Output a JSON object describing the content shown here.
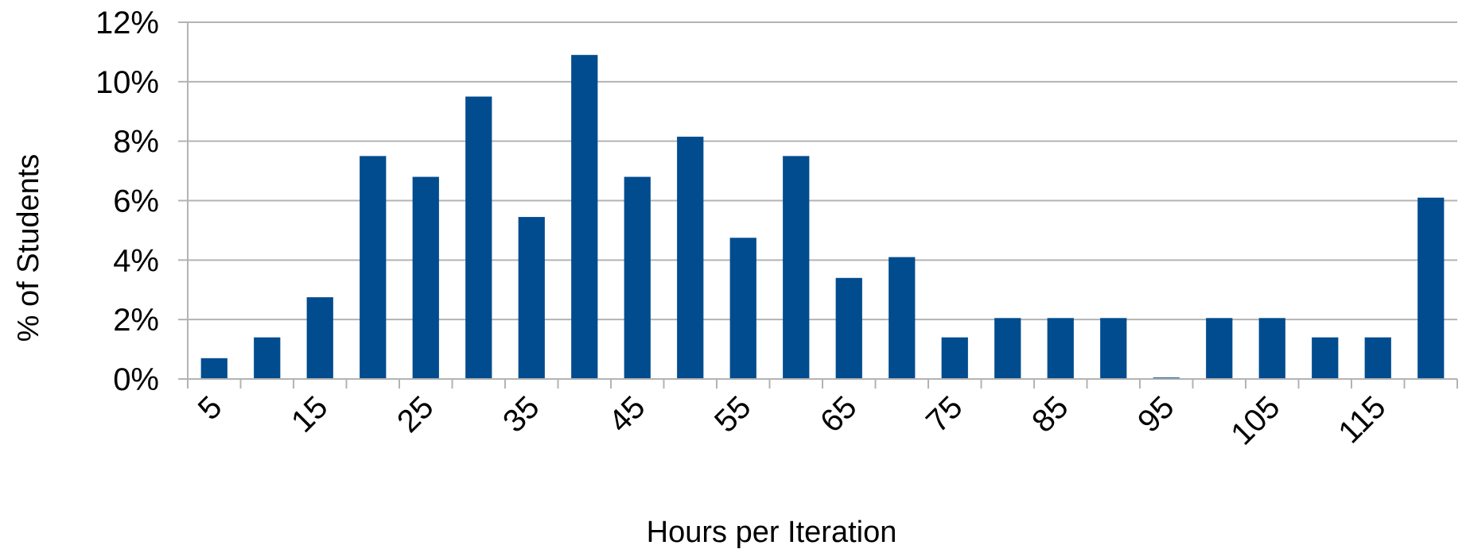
{
  "chart_data": {
    "type": "bar",
    "xlabel": "Hours per Iteration",
    "ylabel": "% of Students",
    "ylim": [
      0,
      12
    ],
    "y_ticks": [
      "0%",
      "2%",
      "4%",
      "6%",
      "8%",
      "10%",
      "12%"
    ],
    "grid": "horizontal",
    "bar_color": "#004c8f",
    "categories": [
      "5",
      "10",
      "15",
      "20",
      "25",
      "30",
      "35",
      "40",
      "45",
      "50",
      "55",
      "60",
      "65",
      "70",
      "75",
      "80",
      "85",
      "90",
      "95",
      "100",
      "105",
      "110",
      "115",
      "120"
    ],
    "category_labels": [
      "5",
      "",
      "15",
      "",
      "25",
      "",
      "35",
      "",
      "45",
      "",
      "55",
      "",
      "65",
      "",
      "75",
      "",
      "85",
      "",
      "95",
      "",
      "105",
      "",
      "115",
      ""
    ],
    "values": [
      0.7,
      1.4,
      2.75,
      7.5,
      6.8,
      9.5,
      5.45,
      10.9,
      6.8,
      8.15,
      4.75,
      7.5,
      3.4,
      4.1,
      1.4,
      2.05,
      2.05,
      2.05,
      0.05,
      2.05,
      2.05,
      1.4,
      1.4,
      6.1
    ]
  }
}
